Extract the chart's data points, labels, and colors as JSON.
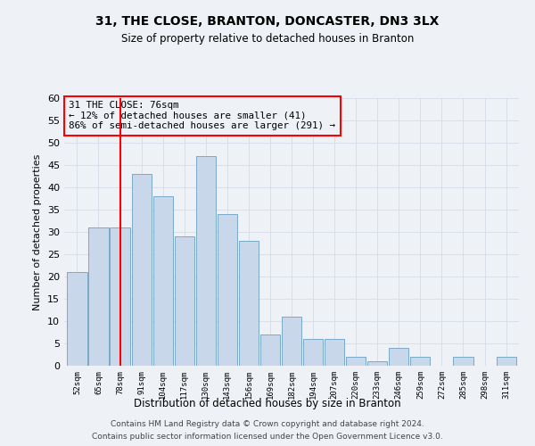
{
  "title1": "31, THE CLOSE, BRANTON, DONCASTER, DN3 3LX",
  "title2": "Size of property relative to detached houses in Branton",
  "xlabel": "Distribution of detached houses by size in Branton",
  "ylabel": "Number of detached properties",
  "categories": [
    "52sqm",
    "65sqm",
    "78sqm",
    "91sqm",
    "104sqm",
    "117sqm",
    "130sqm",
    "143sqm",
    "156sqm",
    "169sqm",
    "182sqm",
    "194sqm",
    "207sqm",
    "220sqm",
    "233sqm",
    "246sqm",
    "259sqm",
    "272sqm",
    "285sqm",
    "298sqm",
    "311sqm"
  ],
  "values": [
    21,
    31,
    31,
    43,
    38,
    29,
    47,
    34,
    28,
    7,
    11,
    6,
    6,
    2,
    1,
    4,
    2,
    0,
    2,
    0,
    2
  ],
  "bar_color": "#c8d8ea",
  "bar_edge_color": "#7aaac8",
  "red_line_index": 2,
  "ylim": [
    0,
    60
  ],
  "yticks": [
    0,
    5,
    10,
    15,
    20,
    25,
    30,
    35,
    40,
    45,
    50,
    55,
    60
  ],
  "annotation_title": "31 THE CLOSE: 76sqm",
  "annotation_line1": "← 12% of detached houses are smaller (41)",
  "annotation_line2": "86% of semi-detached houses are larger (291) →",
  "footer1": "Contains HM Land Registry data © Crown copyright and database right 2024.",
  "footer2": "Contains public sector information licensed under the Open Government Licence v3.0.",
  "bg_color": "#eef2f7",
  "grid_color": "#d0d8e4"
}
